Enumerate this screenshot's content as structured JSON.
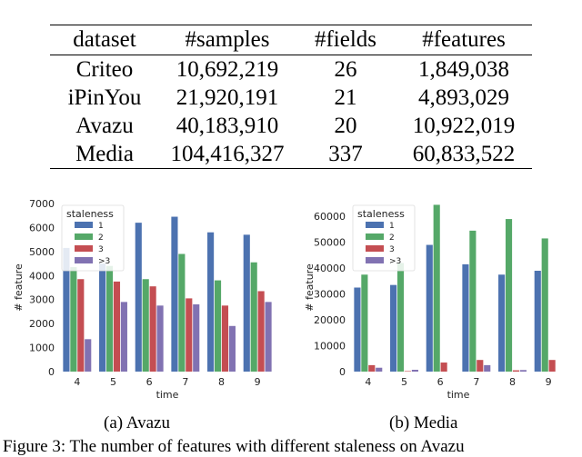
{
  "table": {
    "columns": [
      "dataset",
      "#samples",
      "#fields",
      "#features"
    ],
    "rows": [
      [
        "Criteo",
        "10,692,219",
        "26",
        "1,849,038"
      ],
      [
        "iPinYou",
        "21,920,191",
        "21",
        "4,893,029"
      ],
      [
        "Avazu",
        "40,183,910",
        "20",
        "10,922,019"
      ],
      [
        "Media",
        "104,416,327",
        "337",
        "60,833,522"
      ]
    ]
  },
  "colors": {
    "series": [
      "#4c72b0",
      "#55a868",
      "#c44e52",
      "#8172b2"
    ]
  },
  "chart_data": [
    {
      "type": "bar",
      "categories": [
        "4",
        "5",
        "6",
        "7",
        "8",
        "9"
      ],
      "xlabel": "time",
      "ylabel": "# feature",
      "ylim": [
        0,
        7000
      ],
      "yticks": [
        "0",
        "1000",
        "2000",
        "3000",
        "4000",
        "5000",
        "6000",
        "7000"
      ],
      "legend": {
        "title": "staleness",
        "placement": "top-left"
      },
      "series": [
        {
          "name": "1",
          "values": [
            5150,
            4500,
            6200,
            6450,
            5800,
            5700
          ]
        },
        {
          "name": "2",
          "values": [
            4350,
            4400,
            3850,
            4900,
            3800,
            4550
          ]
        },
        {
          "name": "3",
          "values": [
            3850,
            3750,
            3550,
            3050,
            2750,
            3350
          ]
        },
        {
          "name": ">3",
          "values": [
            1350,
            2900,
            2750,
            2800,
            1900,
            2900
          ]
        }
      ]
    },
    {
      "type": "bar",
      "categories": [
        "4",
        "5",
        "6",
        "7",
        "8",
        "9"
      ],
      "xlabel": "time",
      "ylabel": "# feature",
      "ylim": [
        0,
        65000
      ],
      "yticks": [
        "0",
        "10000",
        "20000",
        "30000",
        "40000",
        "50000",
        "60000"
      ],
      "legend": {
        "title": "staleness",
        "placement": "top-left"
      },
      "series": [
        {
          "name": "1",
          "values": [
            32500,
            33500,
            49000,
            41500,
            37500,
            39000
          ]
        },
        {
          "name": "2",
          "values": [
            37500,
            42000,
            64500,
            54500,
            59000,
            51500
          ]
        },
        {
          "name": "3",
          "values": [
            2500,
            200,
            3500,
            4500,
            500,
            4500
          ]
        },
        {
          "name": ">3",
          "values": [
            1500,
            700,
            0,
            2500,
            600,
            0
          ]
        }
      ]
    }
  ],
  "captions": {
    "a": "(a) Avazu",
    "b": "(b) Media",
    "figure": "Figure 3: The number of features with different staleness on Avazu"
  }
}
